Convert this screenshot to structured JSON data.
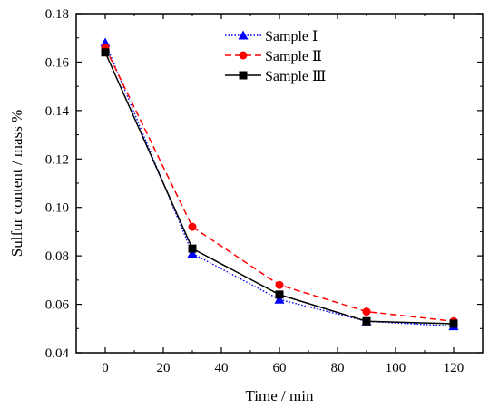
{
  "chart_data": {
    "type": "line",
    "xlabel": "Time / min",
    "ylabel": "Sulfur content / mass %",
    "xlim": [
      -10,
      130
    ],
    "ylim": [
      0.04,
      0.18
    ],
    "xticks": [
      0,
      20,
      40,
      60,
      80,
      100,
      120
    ],
    "yticks": [
      0.04,
      0.06,
      0.08,
      0.1,
      0.12,
      0.14,
      0.16,
      0.18
    ],
    "ytick_labels": [
      "0.04",
      "0.06",
      "0.08",
      "0.10",
      "0.12",
      "0.14",
      "0.16",
      "0.18"
    ],
    "legend_position": "top-center",
    "grid": false,
    "x": [
      0,
      30,
      60,
      90,
      120
    ],
    "series": [
      {
        "name": "Sample Ⅰ",
        "values": [
          0.168,
          0.081,
          0.062,
          0.053,
          0.051
        ],
        "color": "#0000ff",
        "marker": "triangle",
        "line": "dotted"
      },
      {
        "name": "Sample Ⅱ",
        "values": [
          0.166,
          0.092,
          0.068,
          0.057,
          0.053
        ],
        "color": "#ff0000",
        "marker": "circle",
        "line": "dashed"
      },
      {
        "name": "Sample Ⅲ",
        "values": [
          0.164,
          0.083,
          0.064,
          0.053,
          0.052
        ],
        "color": "#000000",
        "marker": "square",
        "line": "solid"
      }
    ]
  }
}
